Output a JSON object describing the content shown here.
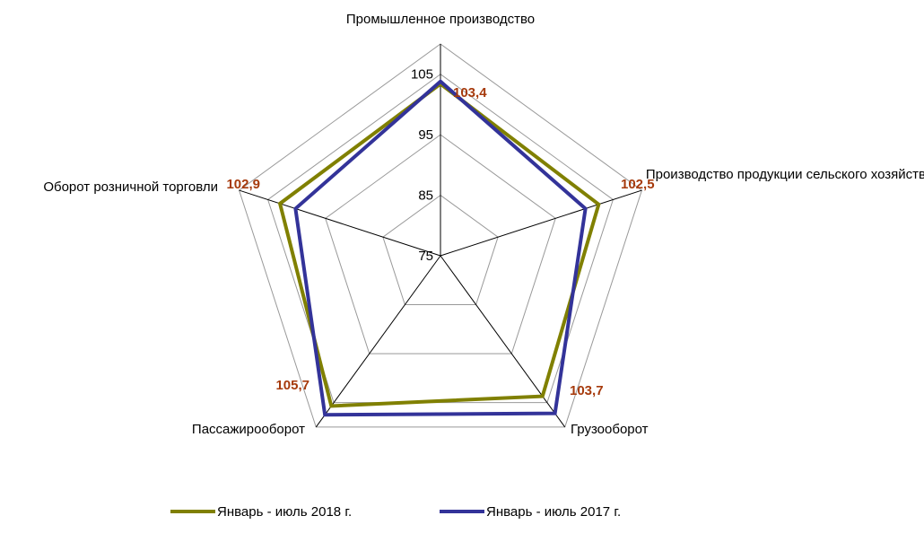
{
  "chart_data": {
    "type": "radar",
    "categories": [
      "Промышленное производство",
      "Производство продукции сельского хозяйства",
      "Грузооборот",
      "Пассажирооборот",
      "Оборот розничной торговли"
    ],
    "series": [
      {
        "name": "Январь - июль 2018 г.",
        "color": "#808000",
        "values": [
          103.4,
          102.5,
          103.7,
          105.7,
          102.9
        ],
        "value_labels": [
          "103,4",
          "102,5",
          "103,7",
          "105,7",
          "102,9"
        ]
      },
      {
        "name": "Январь - июль 2017 г.",
        "color": "#333399",
        "values": [
          103.8,
          100.2,
          107.2,
          107.5,
          100.2
        ]
      }
    ],
    "ylim": [
      75,
      110
    ],
    "yticks": [
      75,
      85,
      95,
      105
    ],
    "grid": true,
    "legend": "bottom"
  }
}
